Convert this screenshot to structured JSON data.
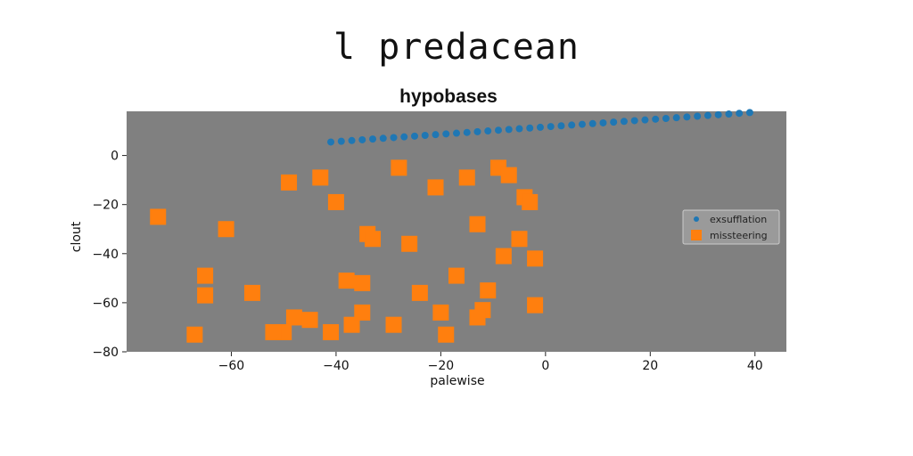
{
  "figure": {
    "suptitle": "l predacean"
  },
  "chart_data": {
    "type": "scatter",
    "title": "hypobases",
    "xlabel": "palewise",
    "ylabel": "clout",
    "xlim": [
      -80,
      46
    ],
    "ylim": [
      -80,
      18
    ],
    "xticks": [
      -60,
      -40,
      -20,
      0,
      20,
      40
    ],
    "yticks": [
      0,
      -20,
      -40,
      -60,
      -80
    ],
    "grid": false,
    "legend_position": "center-right",
    "series": [
      {
        "name": "exsufflation",
        "marker": "circle",
        "color": "#1f77b4",
        "x": [
          -41,
          -39,
          -37,
          -35,
          -33,
          -31,
          -29,
          -27,
          -25,
          -23,
          -21,
          -19,
          -17,
          -15,
          -13,
          -11,
          -9,
          -7,
          -5,
          -3,
          -1,
          1,
          3,
          5,
          7,
          9,
          11,
          13,
          15,
          17,
          19,
          21,
          23,
          25,
          27,
          29,
          31,
          33,
          35,
          37,
          39
        ],
        "y": [
          5.5,
          5.8,
          6.1,
          6.4,
          6.7,
          7.0,
          7.3,
          7.6,
          7.9,
          8.2,
          8.5,
          8.8,
          9.1,
          9.4,
          9.7,
          10.0,
          10.3,
          10.6,
          10.9,
          11.2,
          11.5,
          11.8,
          12.1,
          12.4,
          12.7,
          13.0,
          13.3,
          13.6,
          13.9,
          14.2,
          14.5,
          14.8,
          15.1,
          15.4,
          15.7,
          16.0,
          16.3,
          16.6,
          16.9,
          17.2,
          17.5
        ]
      },
      {
        "name": "missteering",
        "marker": "square",
        "color": "#ff7f0e",
        "x": [
          -74,
          -61,
          -65,
          -65,
          -56,
          -49,
          -43,
          -40,
          -38,
          -34,
          -33,
          -28,
          -26,
          -21,
          -15,
          -9,
          -7,
          -4,
          -3,
          -13,
          -5,
          -8,
          -2,
          -17,
          -11,
          -12,
          -13,
          -24,
          -20,
          -19,
          -29,
          -2,
          -35,
          -37,
          -35,
          -41,
          -45,
          -48,
          -50,
          -52,
          -67
        ],
        "y": [
          -25,
          -30,
          -49,
          -57,
          -56,
          -11,
          -9,
          -19,
          -51,
          -32,
          -34,
          -5,
          -36,
          -13,
          -9,
          -5,
          -8,
          -17,
          -19,
          -28,
          -34,
          -41,
          -42,
          -49,
          -55,
          -63,
          -66,
          -56,
          -64,
          -73,
          -69,
          -61,
          -52,
          -69,
          -64,
          -72,
          -67,
          -66,
          -72,
          -72,
          -73
        ]
      }
    ]
  }
}
